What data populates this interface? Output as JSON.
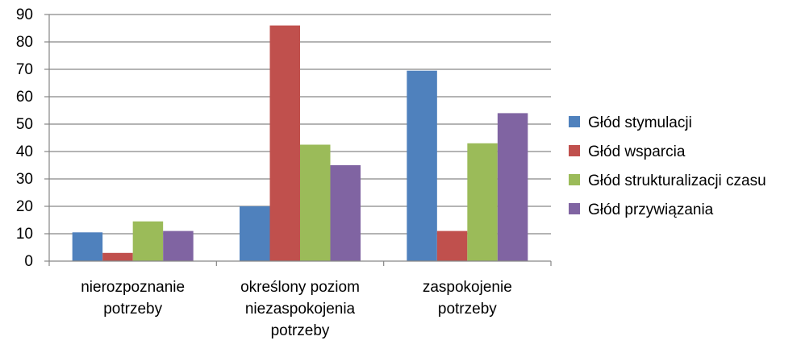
{
  "chart_data": {
    "type": "bar",
    "title": "",
    "xlabel": "",
    "ylabel": "",
    "ylim": [
      0,
      90
    ],
    "yticks": [
      0,
      10,
      20,
      30,
      40,
      50,
      60,
      70,
      80,
      90
    ],
    "grid": true,
    "legend_position": "right",
    "categories": [
      [
        "nierozpoznanie",
        "potrzeby"
      ],
      [
        "określony poziom",
        "niezaspokojenia",
        "potrzeby"
      ],
      [
        "zaspokojenie",
        "potrzeby"
      ]
    ],
    "series": [
      {
        "name": "Głód stymulacji",
        "color": "#4F81BD",
        "values": [
          10.5,
          20,
          69.5
        ]
      },
      {
        "name": "Głód wsparcia",
        "color": "#C0504D",
        "values": [
          3,
          86,
          11
        ]
      },
      {
        "name": "Głód strukturalizacji czasu",
        "color": "#9BBB59",
        "values": [
          14.5,
          42.5,
          43
        ]
      },
      {
        "name": "Głód przywiązania",
        "color": "#8064A2",
        "values": [
          11,
          35,
          54
        ]
      }
    ]
  }
}
